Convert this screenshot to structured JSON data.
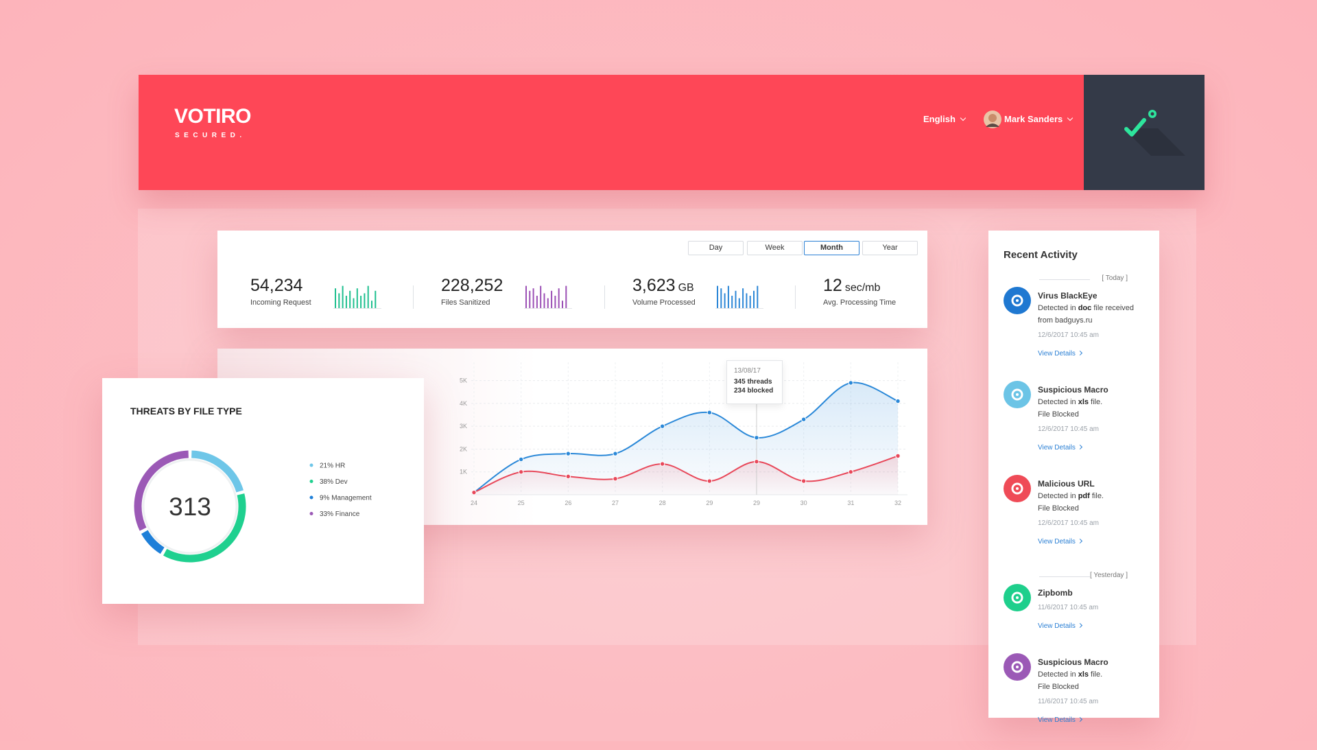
{
  "header": {
    "logo": "VOTIRO",
    "logo_tagline": "SECURED.",
    "language": "English",
    "user": "Mark Sanders"
  },
  "range_tabs": [
    "Day",
    "Week",
    "Month",
    "Year"
  ],
  "stats": [
    {
      "value": "54,234",
      "label": "Incoming Request",
      "spark_color": "#1dbf8e",
      "spark": [
        8,
        6,
        9,
        5,
        7,
        4,
        8,
        5,
        6,
        9,
        3,
        7
      ]
    },
    {
      "value": "228,252",
      "label": "Files Sanitized",
      "spark_color": "#9b4fb5",
      "spark": [
        9,
        7,
        8,
        5,
        9,
        6,
        4,
        7,
        5,
        8,
        3,
        9
      ]
    },
    {
      "value": "3,623",
      "unit": "GB",
      "label": "Volume Processed",
      "spark_color": "#2b86d6",
      "spark": [
        9,
        8,
        6,
        9,
        5,
        7,
        4,
        8,
        6,
        5,
        7,
        9
      ]
    },
    {
      "value": "12",
      "unit": "sec/mb",
      "label": "Avg. Processing Time"
    }
  ],
  "line_chart": {
    "type": "line",
    "categories": [
      "24",
      "25",
      "26",
      "27",
      "28",
      "29",
      "29",
      "30",
      "31",
      "32"
    ],
    "ylim": [
      0,
      5500
    ],
    "yticks": [
      {
        "value": 1000,
        "label": "1K"
      },
      {
        "value": 2000,
        "label": "2K"
      },
      {
        "value": 3000,
        "label": "3K"
      },
      {
        "value": 4000,
        "label": "4K"
      },
      {
        "value": 5000,
        "label": "5K"
      }
    ],
    "grid": true,
    "series": [
      {
        "color": "#2a88d8",
        "values": [
          100,
          1550,
          1800,
          1800,
          3000,
          3600,
          2500,
          3300,
          4900,
          4100
        ]
      },
      {
        "color": "#e8485a",
        "values": [
          100,
          1000,
          800,
          700,
          1350,
          600,
          1450,
          600,
          1000,
          1700
        ]
      }
    ],
    "tooltip": [
      "13/08/17",
      "345 threads",
      "234 blocked"
    ]
  },
  "donut": {
    "type": "donut",
    "title": "THREATS BY FILE TYPE",
    "total": 313,
    "segments": [
      {
        "label": "21% HR",
        "value": 21,
        "color": "#6ec6e8"
      },
      {
        "label": "38% Dev",
        "value": 38,
        "color": "#1fd08f"
      },
      {
        "label": "9% Management",
        "value": 9,
        "color": "#1e7fd8"
      },
      {
        "label": "33% Finance",
        "value": 33,
        "color": "#9b59b6"
      }
    ]
  },
  "activity": {
    "title": "Recent Activity",
    "groups": [
      {
        "label": "[ Today ]",
        "items": [
          {
            "title": "Virus BlackEye",
            "text": [
              "Detected in ",
              "doc",
              " file received from badguys.ru"
            ],
            "date": "12/6/2017 10:45 am",
            "link": "View Details",
            "icon_color": "#1f78d1"
          },
          {
            "title": "Suspicious Macro",
            "text": [
              "Detected in ",
              "xls",
              " file."
            ],
            "note": "File Blocked",
            "date": "12/6/2017 10:45 am",
            "link": "View Details",
            "icon_color": "#6cc4e6"
          },
          {
            "title": "Malicious URL",
            "text": [
              "Detected in ",
              "pdf",
              " file."
            ],
            "note": "File Blocked",
            "date": "12/6/2017 10:45 am",
            "link": "View Details",
            "icon_color": "#ef4b57"
          }
        ]
      },
      {
        "label": "[ Yesterday ]",
        "items": [
          {
            "title": "Zipbomb",
            "date": "11/6/2017 10:45 am",
            "link": "View Details",
            "icon_color": "#1ecf8c"
          },
          {
            "title": "Suspicious Macro",
            "text": [
              "Detected in ",
              "xls",
              " file."
            ],
            "note": "File Blocked",
            "date": "11/6/2017 10:45 am",
            "link": "View Details",
            "icon_color": "#9b59b6"
          }
        ]
      }
    ]
  }
}
